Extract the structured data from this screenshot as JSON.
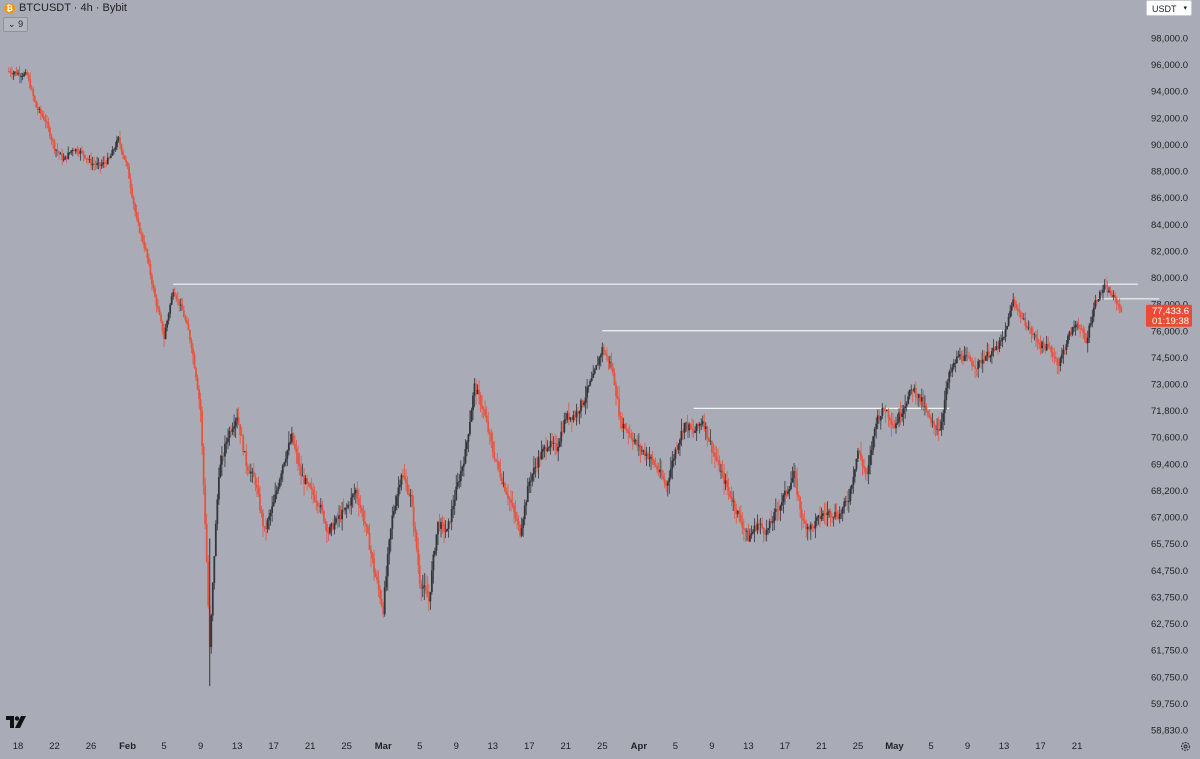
{
  "header": {
    "title": "BTCUSDT · 4h · Bybit",
    "coin_glyph": "₿",
    "indicator_count": "9",
    "indicator_caret": "⌄"
  },
  "currency": {
    "selected": "USDT",
    "caret": "▾"
  },
  "colors": {
    "background": "#a9acb6",
    "candle_up": "#33353a",
    "candle_down": "#e8533f",
    "level_line": "#f4f4f6",
    "price_tag_bg": "#ea4b35",
    "axis_text": "#1f2024"
  },
  "icons": {
    "logo": "tradingview-logo-icon",
    "settings": "gear-icon"
  },
  "chart_data": {
    "type": "candlestick",
    "interval": "4h",
    "y_ticks": [
      "98,000.0",
      "96,000.0",
      "94,000.0",
      "92,000.0",
      "90,000.0",
      "88,000.0",
      "86,000.0",
      "84,000.0",
      "82,000.0",
      "80,000.0",
      "78,000.0",
      "76,000.0",
      "74,500.0",
      "73,000.0",
      "71,800.0",
      "70,600.0",
      "69,400.0",
      "68,200.0",
      "67,000.0",
      "65,750.0",
      "64,750.0",
      "63,750.0",
      "62,750.0",
      "61,750.0",
      "60,750.0",
      "59,750.0",
      "58,830.0"
    ],
    "x_ticks": [
      {
        "label": "18",
        "bold": false
      },
      {
        "label": "22",
        "bold": false
      },
      {
        "label": "26",
        "bold": false
      },
      {
        "label": "Feb",
        "bold": true
      },
      {
        "label": "5",
        "bold": false
      },
      {
        "label": "9",
        "bold": false
      },
      {
        "label": "13",
        "bold": false
      },
      {
        "label": "17",
        "bold": false
      },
      {
        "label": "21",
        "bold": false
      },
      {
        "label": "25",
        "bold": false
      },
      {
        "label": "Mar",
        "bold": true
      },
      {
        "label": "5",
        "bold": false
      },
      {
        "label": "9",
        "bold": false
      },
      {
        "label": "13",
        "bold": false
      },
      {
        "label": "17",
        "bold": false
      },
      {
        "label": "21",
        "bold": false
      },
      {
        "label": "25",
        "bold": false
      },
      {
        "label": "Apr",
        "bold": true
      },
      {
        "label": "5",
        "bold": false
      },
      {
        "label": "9",
        "bold": false
      },
      {
        "label": "13",
        "bold": false
      },
      {
        "label": "17",
        "bold": false
      },
      {
        "label": "21",
        "bold": false
      },
      {
        "label": "25",
        "bold": false
      },
      {
        "label": "May",
        "bold": true
      },
      {
        "label": "5",
        "bold": false
      },
      {
        "label": "9",
        "bold": false
      },
      {
        "label": "13",
        "bold": false
      },
      {
        "label": "17",
        "bold": false
      },
      {
        "label": "21",
        "bold": false
      }
    ],
    "price_path": [
      [
        "2025-01-17",
        95500
      ],
      [
        "2025-01-19",
        95200
      ],
      [
        "2025-01-20",
        92800
      ],
      [
        "2025-01-21",
        91800
      ],
      [
        "2025-01-22",
        89800
      ],
      [
        "2025-01-23",
        88800
      ],
      [
        "2025-01-24",
        89700
      ],
      [
        "2025-01-25",
        89400
      ],
      [
        "2025-01-26",
        88600
      ],
      [
        "2025-01-27",
        88400
      ],
      [
        "2025-01-28",
        88900
      ],
      [
        "2025-01-29",
        90400
      ],
      [
        "2025-01-30",
        88200
      ],
      [
        "2025-01-31",
        84300
      ],
      [
        "2025-02-01",
        82000
      ],
      [
        "2025-02-02",
        78500
      ],
      [
        "2025-02-03",
        75600
      ],
      [
        "2025-02-04",
        79100
      ],
      [
        "2025-02-05",
        77500
      ],
      [
        "2025-02-06",
        75200
      ],
      [
        "2025-02-07",
        71800
      ],
      [
        "2025-02-08",
        61750
      ],
      [
        "2025-02-09",
        69000
      ],
      [
        "2025-02-10",
        70700
      ],
      [
        "2025-02-11",
        71600
      ],
      [
        "2025-02-12",
        69400
      ],
      [
        "2025-02-13",
        68600
      ],
      [
        "2025-02-14",
        66300
      ],
      [
        "2025-02-15",
        67600
      ],
      [
        "2025-02-16",
        69400
      ],
      [
        "2025-02-17",
        70600
      ],
      [
        "2025-02-18",
        68900
      ],
      [
        "2025-02-19",
        68200
      ],
      [
        "2025-02-20",
        67600
      ],
      [
        "2025-02-21",
        66300
      ],
      [
        "2025-02-22",
        66900
      ],
      [
        "2025-02-23",
        67400
      ],
      [
        "2025-02-24",
        68200
      ],
      [
        "2025-02-25",
        66700
      ],
      [
        "2025-02-26",
        64750
      ],
      [
        "2025-02-27",
        63300
      ],
      [
        "2025-02-28",
        67000
      ],
      [
        "2025-03-01",
        69000
      ],
      [
        "2025-03-02",
        67900
      ],
      [
        "2025-03-03",
        64400
      ],
      [
        "2025-03-04",
        63600
      ],
      [
        "2025-03-05",
        66700
      ],
      [
        "2025-03-06",
        66300
      ],
      [
        "2025-03-07",
        68200
      ],
      [
        "2025-03-08",
        69900
      ],
      [
        "2025-03-09",
        72900
      ],
      [
        "2025-03-10",
        71800
      ],
      [
        "2025-03-11",
        70000
      ],
      [
        "2025-03-12",
        68700
      ],
      [
        "2025-03-13",
        67600
      ],
      [
        "2025-03-14",
        66300
      ],
      [
        "2025-03-15",
        68600
      ],
      [
        "2025-03-16",
        69600
      ],
      [
        "2025-03-17",
        70300
      ],
      [
        "2025-03-18",
        70100
      ],
      [
        "2025-03-19",
        71500
      ],
      [
        "2025-03-20",
        71600
      ],
      [
        "2025-03-21",
        72300
      ],
      [
        "2025-03-22",
        73400
      ],
      [
        "2025-03-23",
        75000
      ],
      [
        "2025-03-24",
        74000
      ],
      [
        "2025-03-25",
        71300
      ],
      [
        "2025-03-26",
        70800
      ],
      [
        "2025-03-27",
        70100
      ],
      [
        "2025-03-28",
        69800
      ],
      [
        "2025-03-29",
        69200
      ],
      [
        "2025-03-30",
        68400
      ],
      [
        "2025-03-31",
        70000
      ],
      [
        "2025-04-01",
        71200
      ],
      [
        "2025-04-02",
        70800
      ],
      [
        "2025-04-03",
        71400
      ],
      [
        "2025-04-04",
        70100
      ],
      [
        "2025-04-05",
        69000
      ],
      [
        "2025-04-06",
        68000
      ],
      [
        "2025-04-07",
        67000
      ],
      [
        "2025-04-08",
        66000
      ],
      [
        "2025-04-09",
        66700
      ],
      [
        "2025-04-10",
        66300
      ],
      [
        "2025-04-11",
        67200
      ],
      [
        "2025-04-12",
        68000
      ],
      [
        "2025-04-13",
        68900
      ],
      [
        "2025-04-14",
        66700
      ],
      [
        "2025-04-15",
        66500
      ],
      [
        "2025-04-16",
        67100
      ],
      [
        "2025-04-17",
        67200
      ],
      [
        "2025-04-18",
        67100
      ],
      [
        "2025-04-19",
        67900
      ],
      [
        "2025-04-20",
        70000
      ],
      [
        "2025-04-21",
        68800
      ],
      [
        "2025-04-22",
        71400
      ],
      [
        "2025-04-23",
        71900
      ],
      [
        "2025-04-24",
        71100
      ],
      [
        "2025-04-25",
        72000
      ],
      [
        "2025-04-26",
        72800
      ],
      [
        "2025-04-27",
        72200
      ],
      [
        "2025-04-28",
        71200
      ],
      [
        "2025-04-29",
        71000
      ],
      [
        "2025-04-30",
        73500
      ],
      [
        "2025-05-01",
        74600
      ],
      [
        "2025-05-02",
        74400
      ],
      [
        "2025-05-03",
        74000
      ],
      [
        "2025-05-04",
        74600
      ],
      [
        "2025-05-05",
        74900
      ],
      [
        "2025-05-06",
        75600
      ],
      [
        "2025-05-07",
        78300
      ],
      [
        "2025-05-08",
        76900
      ],
      [
        "2025-05-09",
        75900
      ],
      [
        "2025-05-10",
        75200
      ],
      [
        "2025-05-11",
        75000
      ],
      [
        "2025-05-12",
        74100
      ],
      [
        "2025-05-13",
        75600
      ],
      [
        "2025-05-14",
        76600
      ],
      [
        "2025-05-15",
        75300
      ],
      [
        "2025-05-16",
        78200
      ],
      [
        "2025-05-17",
        79300
      ],
      [
        "2025-05-18",
        78500
      ],
      [
        "2025-05-19",
        77433.6
      ]
    ],
    "horizontal_levels": [
      {
        "price": 79500,
        "from": "2025-02-04",
        "to": "end"
      },
      {
        "price": 78400,
        "from": "2025-05-16",
        "to": "2025-05-23"
      },
      {
        "price": 76000,
        "from": "2025-03-23",
        "to": "2025-05-06"
      },
      {
        "price": 71900,
        "from": "2025-04-02",
        "to": "2025-04-30"
      }
    ],
    "last_price": "77,433.6",
    "countdown": "01:19:38"
  }
}
